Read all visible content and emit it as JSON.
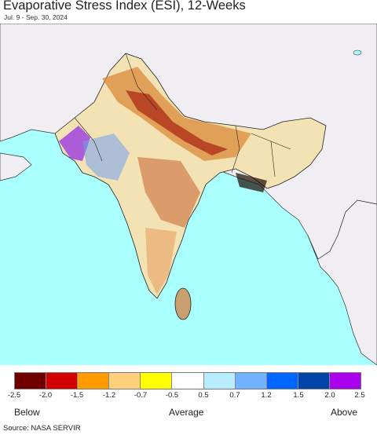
{
  "title": "Evaporative Stress Index (ESI), 12-Weeks",
  "date_range": "Jul. 9 - Sep. 30, 2024",
  "legend": {
    "colors": [
      "#700000",
      "#d40000",
      "#ff9a00",
      "#ffd07a",
      "#ffff00",
      "#ffffff",
      "#b8ecff",
      "#70b2ff",
      "#0066ff",
      "#0044aa",
      "#aa00ee"
    ],
    "ticks": [
      "-2.5",
      "-2.0",
      "-1.5",
      "-1.2",
      "-0.7",
      "-0.5",
      "0.5",
      "0.7",
      "1.2",
      "1.5",
      "2.0",
      "2.5"
    ],
    "below_label": "Below",
    "average_label": "Average",
    "above_label": "Above"
  },
  "map_colors": {
    "ocean": "#aaffff",
    "land_nodata": "#f0eef3",
    "border": "#222222"
  },
  "source": "Source: NASA SERVIR"
}
